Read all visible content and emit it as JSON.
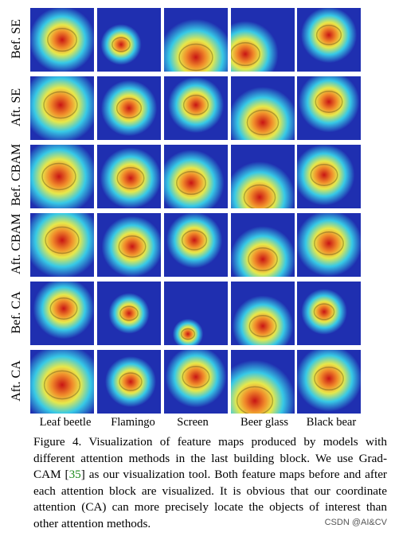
{
  "figure": {
    "rows": [
      {
        "label": "Bef. SE"
      },
      {
        "label": "Aft. SE"
      },
      {
        "label": "Bef. CBAM"
      },
      {
        "label": "Aft. CBAM"
      },
      {
        "label": "Bef. CA"
      },
      {
        "label": "Aft. CA"
      }
    ],
    "columns": [
      {
        "label": "Leaf beetle",
        "icon": "leaf-beetle-heatmap"
      },
      {
        "label": "Flamingo",
        "icon": "flamingo-heatmap"
      },
      {
        "label": "Screen",
        "icon": "screen-heatmap"
      },
      {
        "label": "Beer glass",
        "icon": "beer-glass-heatmap"
      },
      {
        "label": "Black bear",
        "icon": "black-bear-heatmap"
      }
    ],
    "heatmap_colors": {
      "low": "#1f2fb0",
      "mid_low": "#37c9e6",
      "mid": "#e8e84a",
      "mid_high": "#f08a2a",
      "high": "#c81414"
    }
  },
  "caption": {
    "prefix": "Figure 4. Visualization of feature maps produced by models with different attention methods in the last building block. We use Grad-CAM [",
    "ref": "35",
    "suffix": "] as our visualization tool. Both feature maps before and after each attention block are visualized. It is obvious that our coordinate attention (CA) can more precisely locate the objects of interest than other attention methods."
  },
  "watermark": "CSDN @AI&CV"
}
